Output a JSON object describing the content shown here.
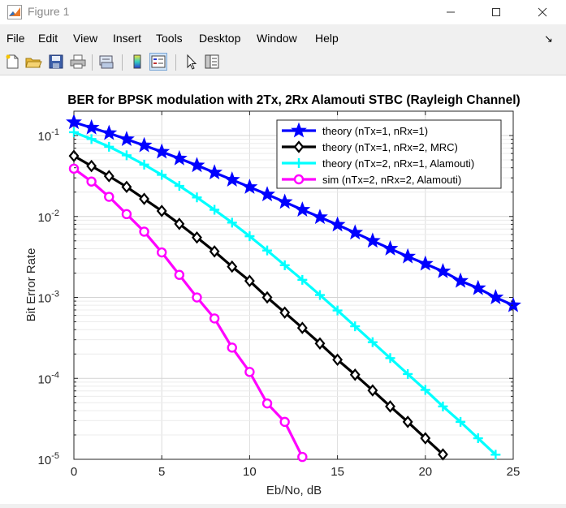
{
  "window": {
    "title": "Figure 1",
    "minimize_icon": "minimize-icon",
    "maximize_icon": "maximize-icon",
    "close_icon": "close-icon"
  },
  "menu": {
    "items": [
      "File",
      "Edit",
      "View",
      "Insert",
      "Tools",
      "Desktop",
      "Window",
      "Help"
    ]
  },
  "toolbar": {
    "icons": [
      "new-figure-icon",
      "open-file-icon",
      "save-icon",
      "print-icon",
      "link-icon",
      "colorbar-icon",
      "legend-icon",
      "pointer-icon",
      "property-editor-icon"
    ]
  },
  "chart_data": {
    "type": "line",
    "title": "BER for BPSK modulation with 2Tx, 2Rx Alamouti STBC (Rayleigh Channel)",
    "xlabel": "Eb/No, dB",
    "ylabel": "Bit Error Rate",
    "xlim": [
      0,
      25
    ],
    "ylim": [
      1e-05,
      0.2
    ],
    "yscale": "log",
    "grid": true,
    "legend_position": "top-right",
    "x_ticks": [
      "0",
      "5",
      "10",
      "15",
      "20",
      "25"
    ],
    "y_ticks": [
      {
        "value": 0.1,
        "base": "10",
        "exp": "-1"
      },
      {
        "value": 0.01,
        "base": "10",
        "exp": "-2"
      },
      {
        "value": 0.001,
        "base": "10",
        "exp": "-3"
      },
      {
        "value": 0.0001,
        "base": "10",
        "exp": "-4"
      },
      {
        "value": 1e-05,
        "base": "10",
        "exp": "-5"
      }
    ],
    "series": [
      {
        "name": "theory (nTx=1, nRx=1)",
        "color": "#0000ff",
        "marker": "star",
        "x": [
          0,
          1,
          2,
          3,
          4,
          5,
          6,
          7,
          8,
          9,
          10,
          11,
          12,
          13,
          14,
          15,
          16,
          17,
          18,
          19,
          20,
          21,
          22,
          23,
          24,
          25
        ],
        "y": [
          0.146,
          0.125,
          0.107,
          0.09,
          0.0755,
          0.063,
          0.052,
          0.0428,
          0.0349,
          0.0284,
          0.0231,
          0.0187,
          0.0151,
          0.0121,
          0.0098,
          0.0079,
          0.0063,
          0.005,
          0.004,
          0.0032,
          0.0026,
          0.0021,
          0.0016,
          0.0013,
          0.001,
          0.0008
        ]
      },
      {
        "name": "theory (nTx=1, nRx=2, MRC)",
        "color": "#000000",
        "marker": "diamond",
        "x": [
          0,
          1,
          2,
          3,
          4,
          5,
          6,
          7,
          8,
          9,
          10,
          11,
          12,
          13,
          14,
          15,
          16,
          17,
          18,
          19,
          20,
          21
        ],
        "y": [
          0.056,
          0.042,
          0.0315,
          0.0232,
          0.0165,
          0.0117,
          0.0081,
          0.0055,
          0.0037,
          0.0024,
          0.0016,
          0.001,
          0.00065,
          0.00042,
          0.00027,
          0.00017,
          0.000111,
          7.1e-05,
          4.5e-05,
          2.9e-05,
          1.82e-05,
          1.15e-05
        ]
      },
      {
        "name": "theory (nTx=2, nRx=1, Alamouti)",
        "color": "#00ffff",
        "marker": "plus",
        "x": [
          0,
          1,
          2,
          3,
          4,
          5,
          6,
          7,
          8,
          9,
          10,
          11,
          12,
          13,
          14,
          15,
          16,
          17,
          18,
          19,
          20,
          21,
          22,
          23,
          24
        ],
        "y": [
          0.11,
          0.0905,
          0.0727,
          0.057,
          0.0437,
          0.0327,
          0.0239,
          0.0172,
          0.0121,
          0.0084,
          0.0057,
          0.0038,
          0.0025,
          0.00165,
          0.00107,
          0.00069,
          0.00044,
          0.00028,
          0.000178,
          0.000113,
          7.2e-05,
          4.5e-05,
          2.9e-05,
          1.82e-05,
          1.14e-05
        ]
      },
      {
        "name": "sim (nTx=2, nRx=2, Alamouti)",
        "color": "#ff00ff",
        "marker": "circle",
        "x": [
          0,
          1,
          2,
          3,
          4,
          5,
          6,
          7,
          8,
          9,
          10,
          11,
          12,
          13
        ],
        "y": [
          0.039,
          0.027,
          0.0175,
          0.0107,
          0.0065,
          0.0036,
          0.0019,
          0.001,
          0.00055,
          0.00024,
          0.00012,
          4.9e-05,
          2.9e-05,
          1.07e-05
        ]
      }
    ]
  }
}
